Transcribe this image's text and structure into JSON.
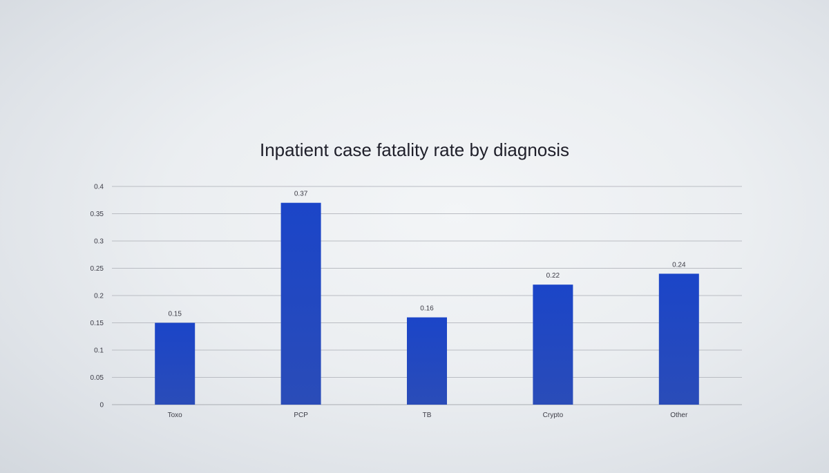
{
  "chart_data": {
    "type": "bar",
    "title": "Inpatient case fatality rate by diagnosis",
    "xlabel": "",
    "ylabel": "",
    "categories": [
      "Toxo",
      "PCP",
      "TB",
      "Crypto",
      "Other"
    ],
    "values": [
      0.15,
      0.37,
      0.16,
      0.22,
      0.24
    ],
    "data_labels": [
      "0.15",
      "0.37",
      "0.16",
      "0.22",
      "0.24"
    ],
    "ylim": [
      0,
      0.4
    ],
    "y_ticks": [
      0,
      0.05,
      0.1,
      0.15,
      0.2,
      0.25,
      0.3,
      0.35,
      0.4
    ],
    "y_tick_labels": [
      "0",
      "0.05",
      "0.1",
      "0.15",
      "0.2",
      "0.25",
      "0.3",
      "0.35",
      "0.4"
    ],
    "grid": true,
    "legend": "none",
    "bar_color": "#1f47c4"
  }
}
